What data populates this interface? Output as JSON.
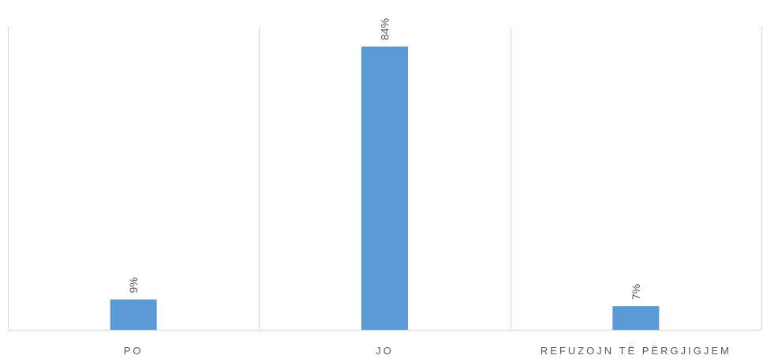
{
  "chart_data": {
    "type": "bar",
    "categories": [
      "PO",
      "JO",
      "REFUZOJN TË PËRGJIGJEM"
    ],
    "values": [
      9,
      84,
      7
    ],
    "data_labels": [
      "9%",
      "84%",
      "7%"
    ],
    "ylim": [
      0,
      84
    ],
    "grid": "vertical category separators",
    "legend": "none",
    "colors": {
      "bar": "#5b9bd5",
      "grid": "#d9d9d9",
      "text": "#595959"
    }
  }
}
